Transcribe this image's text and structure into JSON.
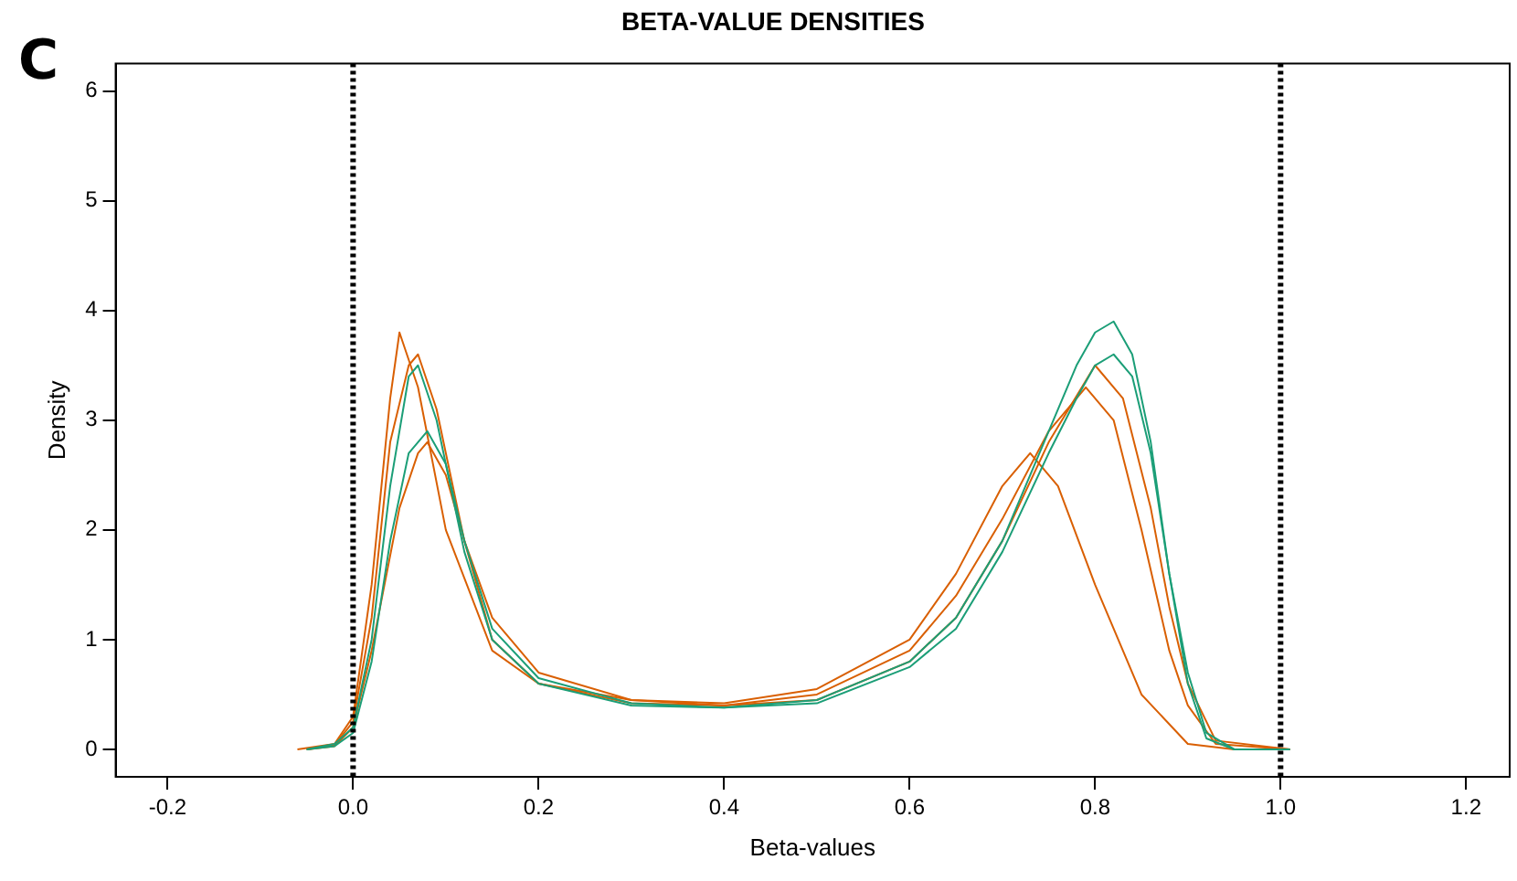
{
  "chart_data": {
    "type": "line",
    "title": "BETA-VALUE DENSITIES",
    "xlabel": "Beta-values",
    "ylabel": "Density",
    "annotations": [
      "C"
    ],
    "xlim": [
      -0.256,
      1.247
    ],
    "ylim": [
      -0.25,
      6.25
    ],
    "xticks": [
      -0.2,
      {
        "value": 0,
        "label": "0.0"
      },
      0.2,
      0.4,
      0.6,
      0.8,
      {
        "value": 1,
        "label": "1.0"
      },
      1.2
    ],
    "yticks": [
      0,
      1,
      2,
      3,
      4,
      5,
      6
    ],
    "grid": false,
    "legend": false,
    "marker": "none",
    "line_style": "solid",
    "ref_lines": [
      {
        "axis": "x",
        "value": 0,
        "label": null,
        "color": "#000000",
        "line_style": "dotted"
      },
      {
        "axis": "x",
        "value": 1,
        "label": null,
        "color": "#000000",
        "line_style": "dotted"
      }
    ],
    "series": [
      {
        "color": "#1b9e77",
        "x": [
          -0.05,
          -0.02,
          0,
          0.02,
          0.04,
          0.06,
          0.07,
          0.09,
          0.12,
          0.15,
          0.2,
          0.3,
          0.4,
          0.5,
          0.6,
          0.65,
          0.7,
          0.75,
          0.78,
          0.8,
          0.82,
          0.84,
          0.86,
          0.88,
          0.9,
          0.92,
          0.95,
          1.01
        ],
        "values": [
          0,
          0.05,
          0.2,
          1.0,
          2.4,
          3.4,
          3.5,
          3.0,
          1.8,
          1.0,
          0.6,
          0.4,
          0.38,
          0.45,
          0.8,
          1.2,
          1.9,
          2.9,
          3.5,
          3.8,
          3.9,
          3.6,
          2.8,
          1.6,
          0.6,
          0.1,
          0,
          0
        ]
      },
      {
        "color": "#1b9e77",
        "x": [
          -0.05,
          -0.02,
          0,
          0.02,
          0.04,
          0.06,
          0.08,
          0.1,
          0.12,
          0.15,
          0.2,
          0.3,
          0.4,
          0.5,
          0.6,
          0.65,
          0.7,
          0.75,
          0.78,
          0.8,
          0.82,
          0.84,
          0.86,
          0.88,
          0.9,
          0.92,
          0.95,
          1.01
        ],
        "values": [
          0,
          0.03,
          0.15,
          0.8,
          1.9,
          2.7,
          2.9,
          2.6,
          1.9,
          1.1,
          0.65,
          0.42,
          0.38,
          0.42,
          0.75,
          1.1,
          1.8,
          2.7,
          3.2,
          3.5,
          3.6,
          3.4,
          2.7,
          1.6,
          0.7,
          0.15,
          0,
          0
        ]
      },
      {
        "color": "#d95f02",
        "x": [
          -0.06,
          -0.02,
          0,
          0.02,
          0.04,
          0.05,
          0.07,
          0.1,
          0.15,
          0.2,
          0.3,
          0.4,
          0.5,
          0.6,
          0.65,
          0.7,
          0.73,
          0.76,
          0.8,
          0.85,
          0.9,
          0.95,
          1.01
        ],
        "values": [
          0,
          0.05,
          0.3,
          1.5,
          3.2,
          3.8,
          3.3,
          2.0,
          0.9,
          0.6,
          0.45,
          0.42,
          0.55,
          1.0,
          1.6,
          2.4,
          2.7,
          2.4,
          1.5,
          0.5,
          0.05,
          0,
          0
        ]
      },
      {
        "color": "#d95f02",
        "x": [
          -0.05,
          -0.02,
          0,
          0.02,
          0.04,
          0.06,
          0.07,
          0.09,
          0.12,
          0.15,
          0.2,
          0.3,
          0.4,
          0.5,
          0.6,
          0.65,
          0.7,
          0.75,
          0.79,
          0.82,
          0.85,
          0.88,
          0.9,
          0.93,
          1.01
        ],
        "values": [
          0,
          0.04,
          0.25,
          1.2,
          2.8,
          3.5,
          3.6,
          3.1,
          1.9,
          1.0,
          0.6,
          0.42,
          0.4,
          0.5,
          0.9,
          1.4,
          2.1,
          2.9,
          3.3,
          3.0,
          2.0,
          0.9,
          0.4,
          0.05,
          0
        ]
      },
      {
        "color": "#d95f02",
        "x": [
          -0.05,
          -0.02,
          0,
          0.02,
          0.05,
          0.07,
          0.08,
          0.1,
          0.12,
          0.15,
          0.2,
          0.3,
          0.4,
          0.5,
          0.6,
          0.65,
          0.7,
          0.75,
          0.8,
          0.83,
          0.86,
          0.88,
          0.9,
          0.93,
          1.01
        ],
        "values": [
          0,
          0.03,
          0.2,
          0.9,
          2.2,
          2.7,
          2.8,
          2.5,
          1.9,
          1.2,
          0.7,
          0.45,
          0.4,
          0.45,
          0.8,
          1.2,
          1.9,
          2.8,
          3.5,
          3.2,
          2.2,
          1.3,
          0.6,
          0.08,
          0
        ]
      }
    ]
  }
}
